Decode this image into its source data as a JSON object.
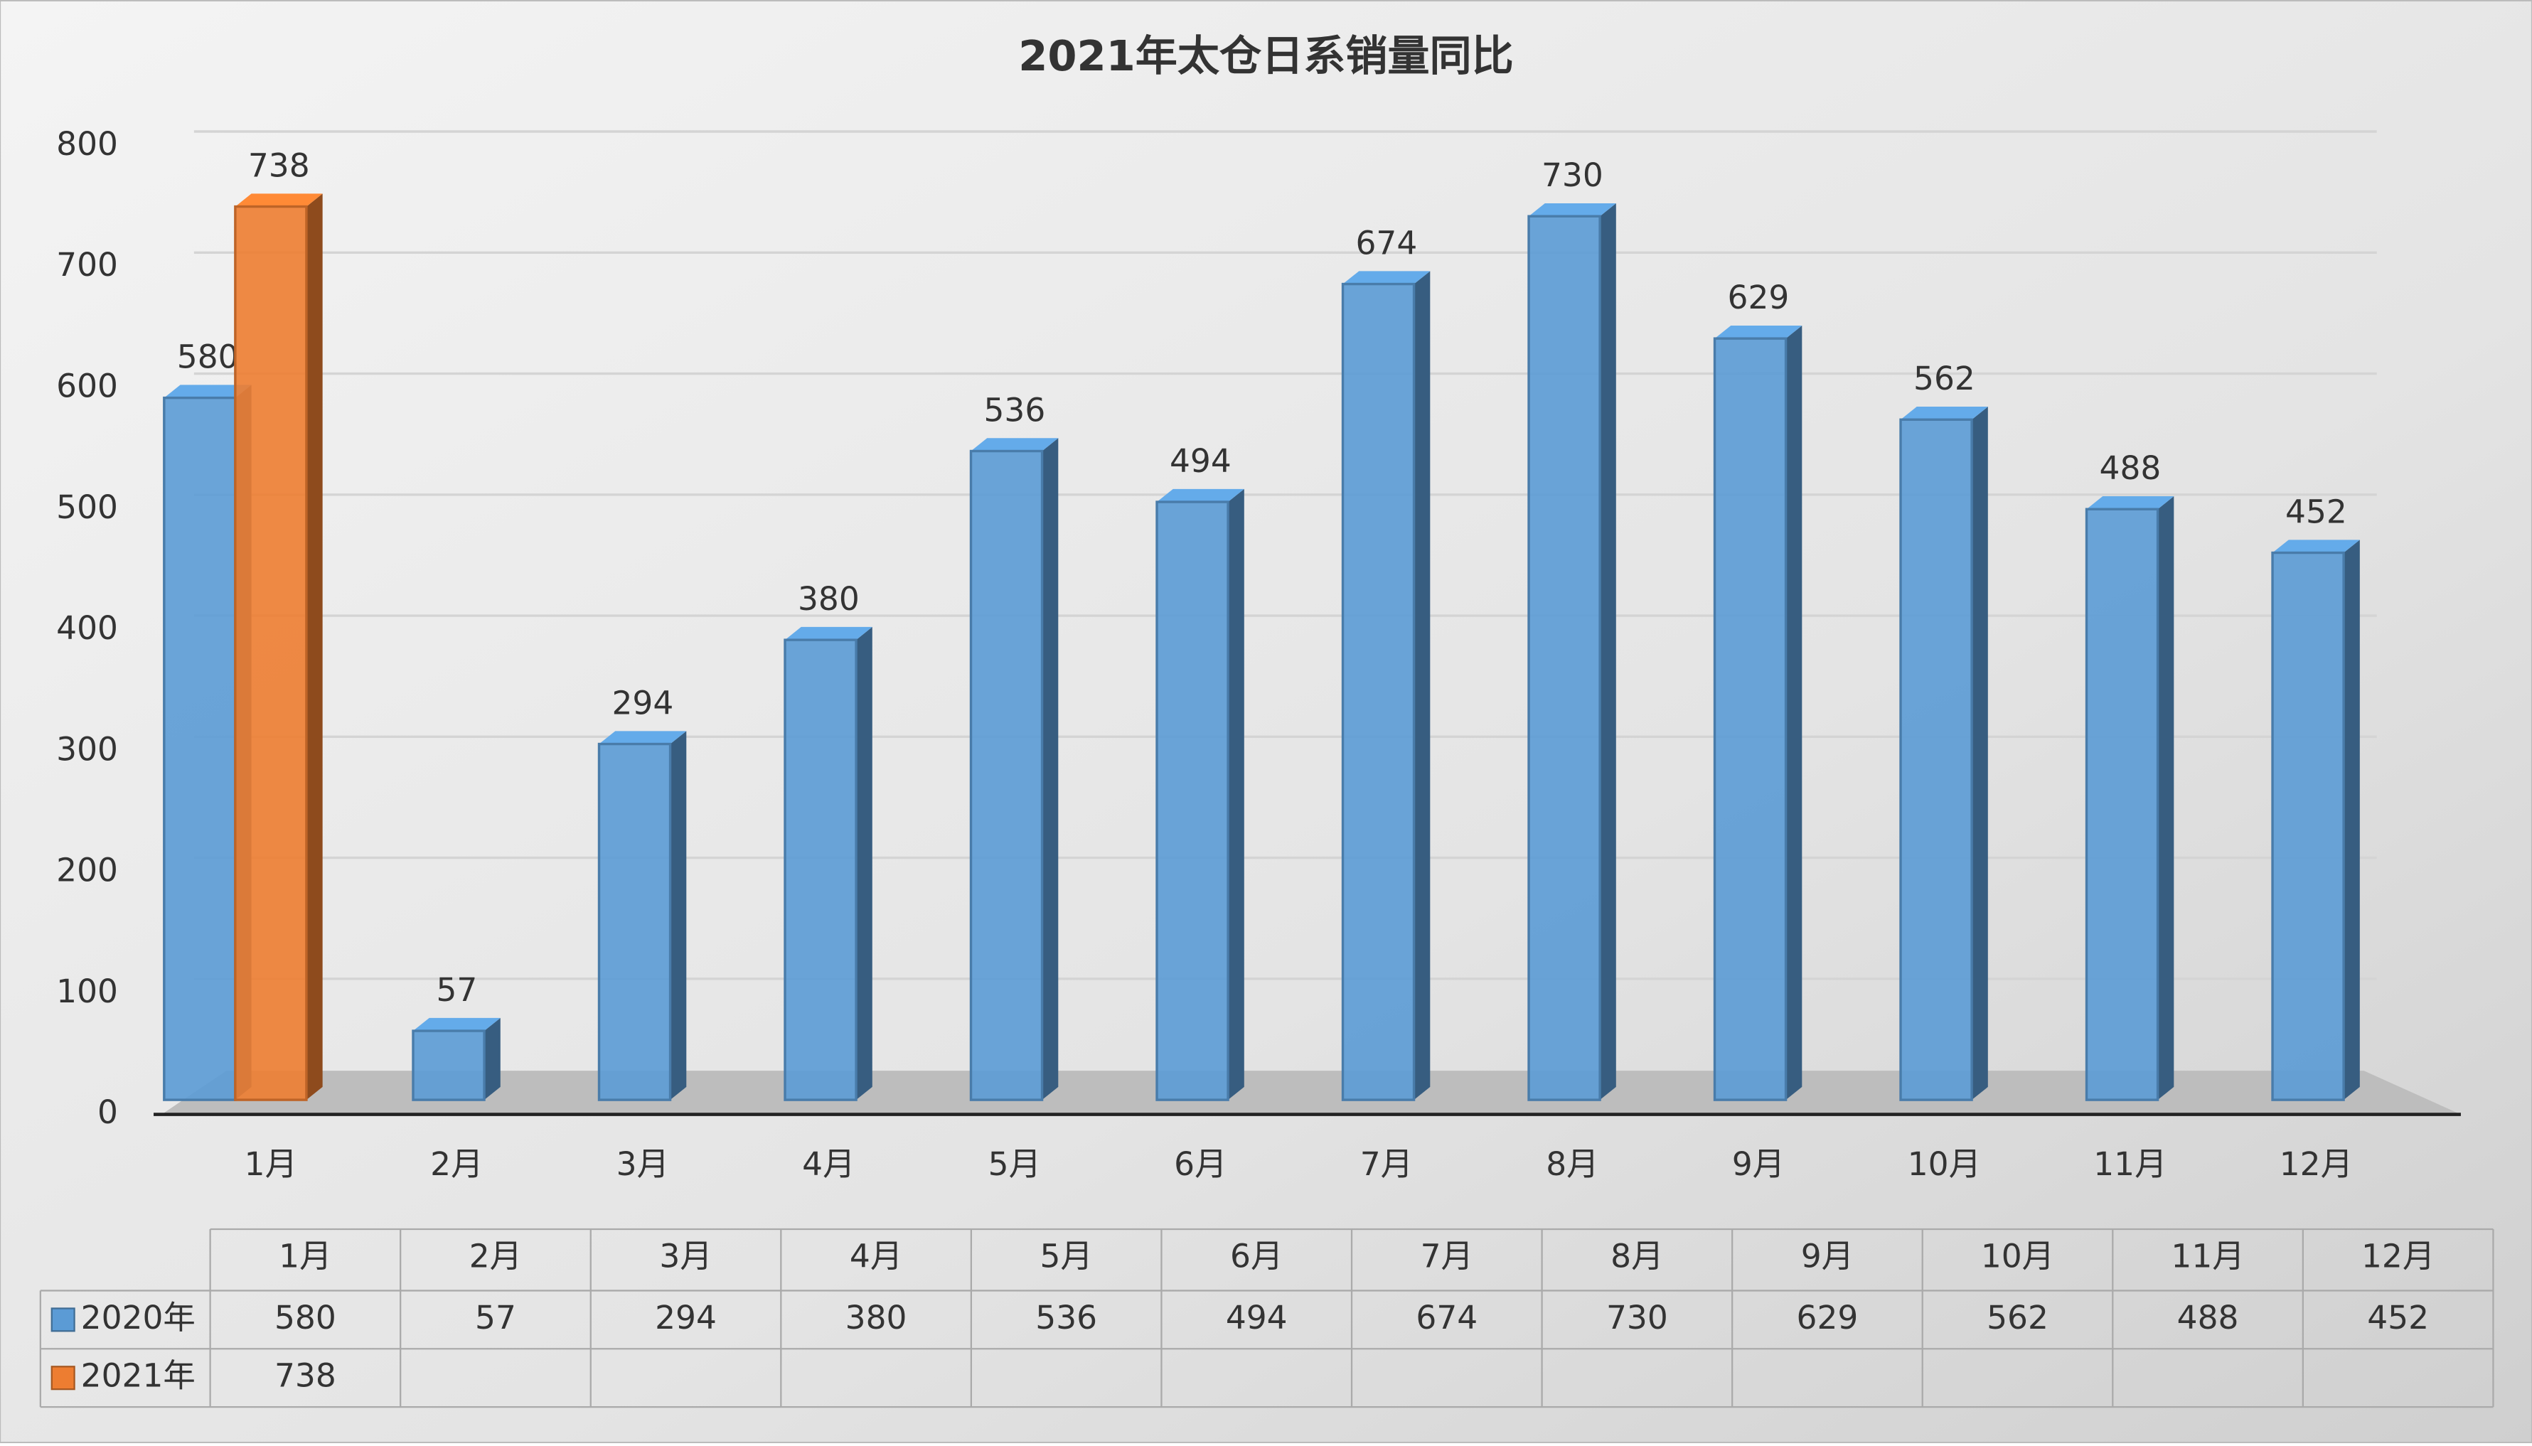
{
  "chart_data": {
    "type": "bar",
    "title": "2021年太仓日系销量同比",
    "categories": [
      "1月",
      "2月",
      "3月",
      "4月",
      "5月",
      "6月",
      "7月",
      "8月",
      "9月",
      "10月",
      "11月",
      "12月"
    ],
    "series": [
      {
        "name": "2020年",
        "color": "#5b9bd5",
        "values": [
          580,
          57,
          294,
          380,
          536,
          494,
          674,
          730,
          629,
          562,
          488,
          452
        ]
      },
      {
        "name": "2021年",
        "color": "#ed7d31",
        "values": [
          738,
          null,
          null,
          null,
          null,
          null,
          null,
          null,
          null,
          null,
          null,
          null
        ]
      }
    ],
    "ylim": [
      0,
      800
    ],
    "yticks": [
      0,
      100,
      200,
      300,
      400,
      500,
      600,
      700,
      800
    ],
    "grid": true,
    "data_table": true
  }
}
